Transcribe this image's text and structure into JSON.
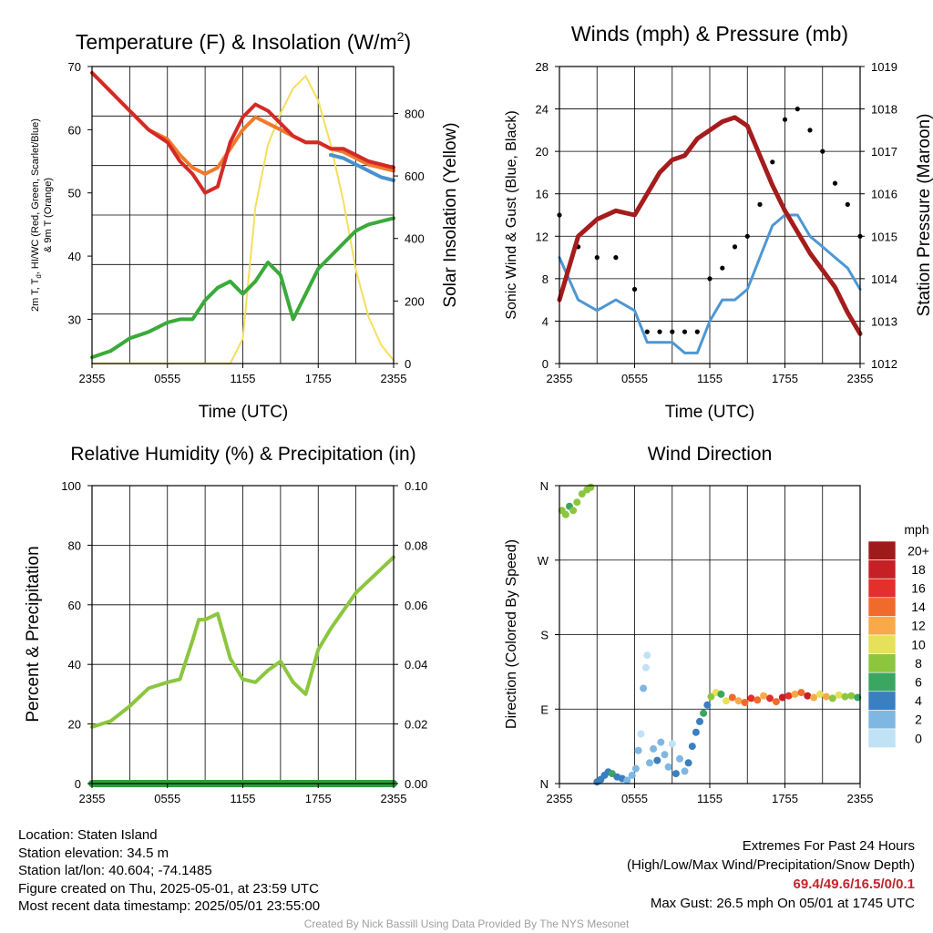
{
  "colors": {
    "temp_red": "#d42a27",
    "temp_orange": "#f07a2a",
    "temp_blue": "#4a90cf",
    "dewpoint_green": "#3aaa3a",
    "insolation_yellow": "#f6df5c",
    "wind_blue": "#4e97d3",
    "gust_black": "#000000",
    "pressure_maroon": "#a51c1c",
    "rh_green": "#8cc63f",
    "precip_green": "#2f9e3c"
  },
  "panels": {
    "temperature": {
      "title_main": "Temperature (F) & Insolation (W/m",
      "title_sup": "2",
      "title_close": ")",
      "ylabel_left": [
        "2m T, T",
        "d",
        ", HI/WC (Red, Green, Scarlet/Blue)",
        "& 9m T (Orange)"
      ],
      "ylabel_right": "Solar Insolation (Yellow)",
      "xlabel": "Time (UTC)",
      "yticks_left": [
        "30",
        "40",
        "50",
        "60",
        "70"
      ],
      "yticks_right": [
        "0",
        "200",
        "400",
        "600",
        "800"
      ],
      "xticks": [
        "2355",
        "0555",
        "1155",
        "1755",
        "2355"
      ]
    },
    "winds": {
      "title": "Winds (mph) & Pressure (mb)",
      "ylabel_left": "Sonic Wind & Gust (Blue, Black)",
      "ylabel_right": "Station Pressure (Maroon)",
      "xlabel": "Time (UTC)",
      "yticks_left": [
        "0",
        "4",
        "8",
        "12",
        "16",
        "20",
        "24",
        "28"
      ],
      "yticks_right": [
        "1012",
        "1013",
        "1014",
        "1015",
        "1016",
        "1017",
        "1018",
        "1019"
      ],
      "xticks": [
        "2355",
        "0555",
        "1155",
        "1755",
        "2355"
      ]
    },
    "humidity": {
      "title": "Relative Humidity (%) & Precipitation (in)",
      "ylabel_left": "Percent & Precipitation",
      "yticks_left": [
        "0",
        "20",
        "40",
        "60",
        "80",
        "100"
      ],
      "yticks_right": [
        "0.00",
        "0.02",
        "0.04",
        "0.06",
        "0.08",
        "0.10"
      ],
      "xticks": [
        "2355",
        "0555",
        "1155",
        "1755",
        "2355"
      ]
    },
    "direction": {
      "title": "Wind Direction",
      "ylabel_left": "Direction (Colored By Speed)",
      "yticks_left": [
        "N",
        "E",
        "S",
        "W",
        "N"
      ],
      "xticks": [
        "2355",
        "0555",
        "1155",
        "1755",
        "2355"
      ],
      "colorbar_unit": "mph",
      "colorbar_labels": [
        "20+",
        "18",
        "16",
        "14",
        "12",
        "10",
        "8",
        "6",
        "4",
        "2",
        "0"
      ],
      "colorbar_colors": [
        "#9e1b1b",
        "#c62027",
        "#e3302b",
        "#f06a2c",
        "#f9a94a",
        "#e6e05a",
        "#8cc63f",
        "#3aa662",
        "#3a7fc0",
        "#7fb7e3",
        "#bfe2f5"
      ]
    }
  },
  "footer": {
    "location": "Location: Staten Island",
    "elevation": "Station elevation: 34.5 m",
    "latlon": "Station lat/lon: 40.604; -74.1485",
    "created": "Figure created on Thu, 2025-05-01, at 23:59 UTC",
    "recent": "Most recent data timestamp: 2025/05/01 23:55:00",
    "extremes_title": "Extremes For Past 24 Hours",
    "extremes_legend": "(High/Low/Max Wind/Precipitation/Snow Depth)",
    "extremes_values": "69.4/49.6/16.5/0/0.1",
    "max_gust": "Max Gust: 26.5 mph On 05/01 at 1745 UTC",
    "credit": "Created By Nick Bassill Using Data Provided By The NYS Mesonet"
  },
  "chart_data": [
    {
      "type": "line",
      "title": "Temperature (F) & Insolation (W/m2)",
      "xlabel": "Time (UTC)",
      "x_ticks": [
        "2355",
        "0555",
        "1155",
        "1755",
        "2355"
      ],
      "x_hours": [
        0,
        1.5,
        3,
        4.5,
        6,
        7,
        8,
        9,
        10,
        11,
        12,
        13,
        14,
        15,
        16,
        17,
        18,
        19,
        20,
        21,
        22,
        23,
        24
      ],
      "ylim_left": [
        23,
        70
      ],
      "ylim_right": [
        0,
        950
      ],
      "series": [
        {
          "name": "2m T",
          "color": "temp_red",
          "values": [
            69,
            66,
            63,
            60,
            58,
            55,
            53,
            50,
            51,
            58,
            62,
            64,
            63,
            61,
            59,
            58,
            58,
            57,
            57,
            56,
            55,
            54.5,
            54
          ]
        },
        {
          "name": "9m T",
          "color": "temp_orange",
          "values": [
            69,
            66,
            63,
            60,
            58.5,
            56,
            54,
            53,
            54,
            57,
            60,
            62,
            61,
            60,
            59,
            58,
            58,
            57,
            56.5,
            55.5,
            54.5,
            54,
            53.5
          ]
        },
        {
          "name": "HI/WC",
          "color": "temp_blue",
          "values": [
            null,
            null,
            null,
            null,
            null,
            null,
            null,
            null,
            null,
            null,
            null,
            null,
            null,
            null,
            null,
            null,
            null,
            56,
            55.5,
            54.5,
            53.5,
            52.5,
            52
          ]
        },
        {
          "name": "Td",
          "color": "dewpoint_green",
          "values": [
            24,
            25,
            27,
            28,
            29.5,
            30,
            30,
            33,
            35,
            36,
            34,
            36,
            39,
            37,
            30,
            34,
            38,
            40,
            42,
            44,
            45,
            45.5,
            46
          ]
        },
        {
          "name": "Solar Insolation",
          "color": "insolation_yellow",
          "axis": "right",
          "values": [
            0,
            0,
            0,
            0,
            0,
            0,
            0,
            0,
            0,
            0,
            80,
            500,
            700,
            800,
            880,
            920,
            840,
            700,
            520,
            300,
            150,
            60,
            10
          ]
        }
      ]
    },
    {
      "type": "line",
      "title": "Winds (mph) & Pressure (mb)",
      "xlabel": "Time (UTC)",
      "x_hours": [
        0,
        1.5,
        3,
        4.5,
        6,
        7,
        8,
        9,
        10,
        11,
        12,
        13,
        14,
        15,
        16,
        17,
        18,
        19,
        20,
        21,
        22,
        23,
        24
      ],
      "ylim_left": [
        0,
        28
      ],
      "ylim_right": [
        1012,
        1019
      ],
      "series": [
        {
          "name": "Sonic Wind",
          "color": "wind_blue",
          "values": [
            10,
            6,
            5,
            6,
            5,
            2,
            2,
            2,
            1,
            1,
            4,
            6,
            6,
            7,
            10,
            13,
            14,
            14,
            12,
            11,
            10,
            9,
            7
          ]
        },
        {
          "name": "Gust",
          "color": "gust_black",
          "values": [
            14,
            11,
            10,
            10,
            7,
            3,
            3,
            3,
            3,
            3,
            8,
            9,
            11,
            12,
            15,
            19,
            23,
            24,
            22,
            20,
            17,
            15,
            12
          ]
        },
        {
          "name": "Station Pressure",
          "color": "pressure_maroon",
          "axis": "right",
          "values": [
            1013.5,
            1015.0,
            1015.4,
            1015.6,
            1015.5,
            1016.0,
            1016.5,
            1016.8,
            1016.9,
            1017.3,
            1017.5,
            1017.7,
            1017.8,
            1017.6,
            1016.9,
            1016.2,
            1015.6,
            1015.1,
            1014.6,
            1014.2,
            1013.8,
            1013.2,
            1012.7
          ]
        }
      ]
    },
    {
      "type": "line",
      "title": "Relative Humidity (%) & Precipitation (in)",
      "x_hours": [
        0,
        1.5,
        3,
        4.5,
        6,
        7,
        8,
        8.5,
        9,
        10,
        11,
        12,
        13,
        14,
        15,
        16,
        17,
        18,
        19,
        20,
        21,
        22,
        23,
        24
      ],
      "ylim_left": [
        0,
        100
      ],
      "ylim_right": [
        0,
        0.1
      ],
      "series": [
        {
          "name": "RH",
          "color": "rh_green",
          "values": [
            19,
            21,
            26,
            32,
            34,
            35,
            48,
            55,
            55,
            57,
            42,
            35,
            34,
            38,
            41,
            34,
            30,
            45,
            52,
            58,
            64,
            68,
            72,
            76
          ]
        },
        {
          "name": "Precipitation",
          "color": "precip_green",
          "axis": "right",
          "values": [
            0,
            0,
            0,
            0,
            0,
            0,
            0,
            0,
            0,
            0,
            0,
            0,
            0,
            0,
            0,
            0,
            0,
            0,
            0,
            0,
            0,
            0,
            0,
            0
          ]
        }
      ]
    },
    {
      "type": "scatter",
      "title": "Wind Direction",
      "ylabel": "Direction (Colored By Speed)",
      "y_ticks": [
        "N",
        "E",
        "S",
        "W",
        "N"
      ],
      "ylim_deg": [
        0,
        360
      ],
      "points": [
        [
          0.2,
          330,
          8
        ],
        [
          0.5,
          325,
          8
        ],
        [
          0.8,
          335,
          6
        ],
        [
          1.1,
          330,
          8
        ],
        [
          1.4,
          340,
          8
        ],
        [
          1.8,
          350,
          8
        ],
        [
          2.2,
          355,
          8
        ],
        [
          2.5,
          358,
          8
        ],
        [
          3.0,
          2,
          4
        ],
        [
          3.3,
          5,
          4
        ],
        [
          3.6,
          10,
          4
        ],
        [
          3.9,
          14,
          4
        ],
        [
          4.2,
          12,
          6
        ],
        [
          4.6,
          8,
          4
        ],
        [
          5.0,
          6,
          4
        ],
        [
          5.4,
          4,
          2
        ],
        [
          5.8,
          10,
          2
        ],
        [
          6.1,
          18,
          2
        ],
        [
          6.3,
          40,
          2
        ],
        [
          6.5,
          60,
          0
        ],
        [
          6.7,
          115,
          2
        ],
        [
          6.9,
          140,
          0
        ],
        [
          7.0,
          155,
          0
        ],
        [
          7.2,
          25,
          2
        ],
        [
          7.5,
          42,
          2
        ],
        [
          7.8,
          28,
          4
        ],
        [
          8.1,
          50,
          2
        ],
        [
          8.4,
          35,
          2
        ],
        [
          8.7,
          20,
          2
        ],
        [
          9.0,
          48,
          0
        ],
        [
          9.3,
          12,
          4
        ],
        [
          9.6,
          30,
          2
        ],
        [
          10.0,
          15,
          2
        ],
        [
          10.3,
          25,
          4
        ],
        [
          10.6,
          45,
          4
        ],
        [
          10.9,
          62,
          4
        ],
        [
          11.2,
          75,
          4
        ],
        [
          11.5,
          85,
          6
        ],
        [
          11.8,
          95,
          4
        ],
        [
          12.1,
          105,
          8
        ],
        [
          12.5,
          110,
          10
        ],
        [
          12.9,
          108,
          6
        ],
        [
          13.3,
          100,
          10
        ],
        [
          13.8,
          104,
          14
        ],
        [
          14.3,
          100,
          12
        ],
        [
          14.8,
          98,
          14
        ],
        [
          15.3,
          103,
          16
        ],
        [
          15.8,
          101,
          14
        ],
        [
          16.3,
          106,
          12
        ],
        [
          16.8,
          103,
          16
        ],
        [
          17.3,
          99,
          14
        ],
        [
          17.8,
          104,
          18
        ],
        [
          18.3,
          106,
          16
        ],
        [
          18.8,
          108,
          12
        ],
        [
          19.3,
          110,
          14
        ],
        [
          19.8,
          106,
          18
        ],
        [
          20.3,
          104,
          12
        ],
        [
          20.8,
          108,
          10
        ],
        [
          21.3,
          105,
          12
        ],
        [
          21.8,
          103,
          8
        ],
        [
          22.3,
          107,
          10
        ],
        [
          22.8,
          105,
          8
        ],
        [
          23.3,
          106,
          8
        ],
        [
          23.8,
          104,
          6
        ]
      ]
    }
  ]
}
